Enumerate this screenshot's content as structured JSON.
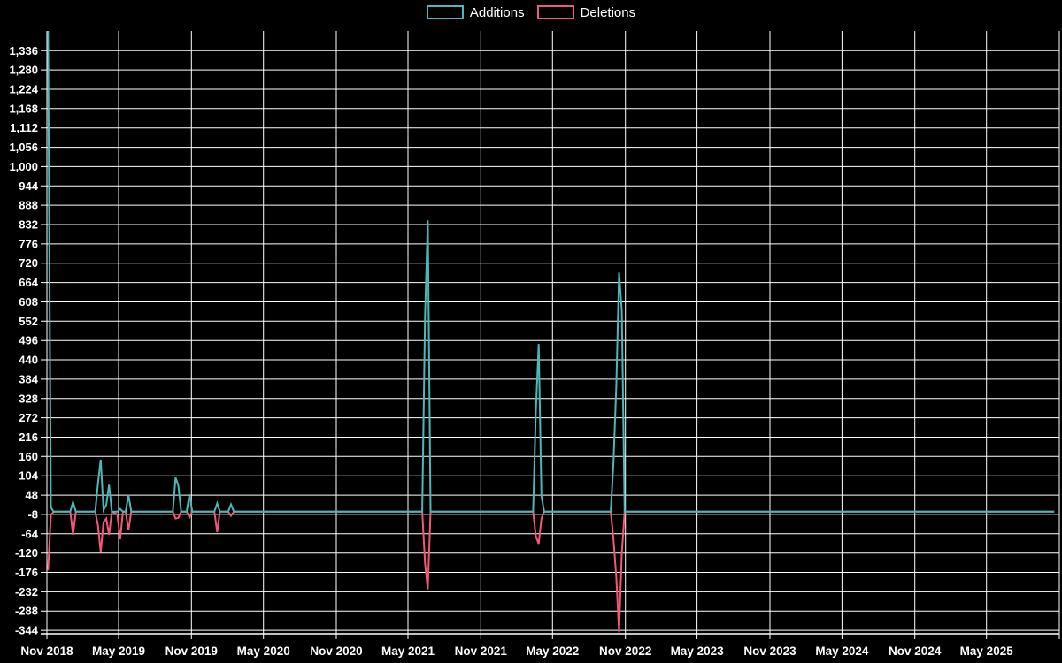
{
  "chart_data": {
    "type": "line",
    "title": "",
    "background": "#000000",
    "grid": true,
    "grid_color": "#ffffff",
    "text_color": "#ffffff",
    "legend_position": "top-center",
    "series": [
      {
        "name": "Additions",
        "color": "#4db8b8"
      },
      {
        "name": "Deletions",
        "color": "#f25878"
      }
    ],
    "ylim": [
      -354,
      1393
    ],
    "xlim": [
      "2018-11-01",
      "2025-11-01"
    ],
    "yticks": [
      {
        "v": 1336,
        "t": "1,336"
      },
      {
        "v": 1280,
        "t": "1,280"
      },
      {
        "v": 1224,
        "t": "1,224"
      },
      {
        "v": 1168,
        "t": "1,168"
      },
      {
        "v": 1112,
        "t": "1,112"
      },
      {
        "v": 1056,
        "t": "1,056"
      },
      {
        "v": 1000,
        "t": "1,000"
      },
      {
        "v": 944,
        "t": "944"
      },
      {
        "v": 888,
        "t": "888"
      },
      {
        "v": 832,
        "t": "832"
      },
      {
        "v": 776,
        "t": "776"
      },
      {
        "v": 720,
        "t": "720"
      },
      {
        "v": 664,
        "t": "664"
      },
      {
        "v": 608,
        "t": "608"
      },
      {
        "v": 552,
        "t": "552"
      },
      {
        "v": 496,
        "t": "496"
      },
      {
        "v": 440,
        "t": "440"
      },
      {
        "v": 384,
        "t": "384"
      },
      {
        "v": 328,
        "t": "328"
      },
      {
        "v": 272,
        "t": "272"
      },
      {
        "v": 216,
        "t": "216"
      },
      {
        "v": 160,
        "t": "160"
      },
      {
        "v": 104,
        "t": "104"
      },
      {
        "v": 48,
        "t": "48"
      },
      {
        "v": -8,
        "t": "-8"
      },
      {
        "v": -64,
        "t": "-64"
      },
      {
        "v": -120,
        "t": "-120"
      },
      {
        "v": -176,
        "t": "-176"
      },
      {
        "v": -232,
        "t": "-232"
      },
      {
        "v": -288,
        "t": "-288"
      },
      {
        "v": -344,
        "t": "-344"
      }
    ],
    "xticks": [
      {
        "d": "2018-11-01",
        "t": "Nov 2018"
      },
      {
        "d": "2019-05-01",
        "t": "May 2019"
      },
      {
        "d": "2019-11-01",
        "t": "Nov 2019"
      },
      {
        "d": "2020-05-01",
        "t": "May 2020"
      },
      {
        "d": "2020-11-01",
        "t": "Nov 2020"
      },
      {
        "d": "2021-05-01",
        "t": "May 2021"
      },
      {
        "d": "2021-11-01",
        "t": "Nov 2021"
      },
      {
        "d": "2022-05-01",
        "t": "May 2022"
      },
      {
        "d": "2022-11-01",
        "t": "Nov 2022"
      },
      {
        "d": "2023-05-01",
        "t": "May 2023"
      },
      {
        "d": "2023-11-01",
        "t": "Nov 2023"
      },
      {
        "d": "2024-05-01",
        "t": "May 2024"
      },
      {
        "d": "2024-11-01",
        "t": "Nov 2024"
      },
      {
        "d": "2025-05-01",
        "t": "May 2025"
      },
      {
        "d": "2025-11-01",
        "t": ""
      }
    ],
    "points": [
      [
        "2018-11-04",
        1393,
        -170
      ],
      [
        "2018-11-11",
        12,
        -10
      ],
      [
        "2018-11-18",
        0,
        0
      ],
      [
        "2018-12-30",
        0,
        0
      ],
      [
        "2019-01-06",
        28,
        -67
      ],
      [
        "2019-01-13",
        0,
        0
      ],
      [
        "2019-03-03",
        0,
        0
      ],
      [
        "2019-03-10",
        82,
        -40
      ],
      [
        "2019-03-17",
        151,
        -117
      ],
      [
        "2019-03-24",
        5,
        -30
      ],
      [
        "2019-03-31",
        20,
        -20
      ],
      [
        "2019-04-07",
        78,
        -67
      ],
      [
        "2019-04-14",
        0,
        0
      ],
      [
        "2019-04-28",
        0,
        -8
      ],
      [
        "2019-05-05",
        8,
        -80
      ],
      [
        "2019-05-12",
        0,
        0
      ],
      [
        "2019-05-19",
        0,
        0
      ],
      [
        "2019-05-26",
        48,
        -54
      ],
      [
        "2019-06-02",
        0,
        0
      ],
      [
        "2019-09-15",
        0,
        0
      ],
      [
        "2019-09-22",
        99,
        -20
      ],
      [
        "2019-09-29",
        76,
        -18
      ],
      [
        "2019-10-06",
        0,
        0
      ],
      [
        "2019-10-20",
        0,
        0
      ],
      [
        "2019-10-27",
        50,
        -16
      ],
      [
        "2019-11-03",
        0,
        0
      ],
      [
        "2019-12-29",
        0,
        0
      ],
      [
        "2020-01-05",
        24,
        -59
      ],
      [
        "2020-01-12",
        0,
        0
      ],
      [
        "2020-02-02",
        0,
        0
      ],
      [
        "2020-02-09",
        21,
        -12
      ],
      [
        "2020-02-16",
        0,
        0
      ],
      [
        "2021-06-06",
        0,
        0
      ],
      [
        "2021-06-13",
        568,
        -149
      ],
      [
        "2021-06-20",
        844,
        -225
      ],
      [
        "2021-06-27",
        0,
        0
      ],
      [
        "2022-03-13",
        0,
        0
      ],
      [
        "2022-03-20",
        291,
        -72
      ],
      [
        "2022-03-27",
        486,
        -93
      ],
      [
        "2022-04-03",
        45,
        -20
      ],
      [
        "2022-04-10",
        0,
        0
      ],
      [
        "2022-09-25",
        0,
        0
      ],
      [
        "2022-10-02",
        143,
        -80
      ],
      [
        "2022-10-09",
        364,
        -190
      ],
      [
        "2022-10-16",
        693,
        -350
      ],
      [
        "2022-10-23",
        581,
        -120
      ],
      [
        "2022-10-30",
        0,
        0
      ],
      [
        "2025-10-19",
        0,
        0
      ]
    ]
  }
}
